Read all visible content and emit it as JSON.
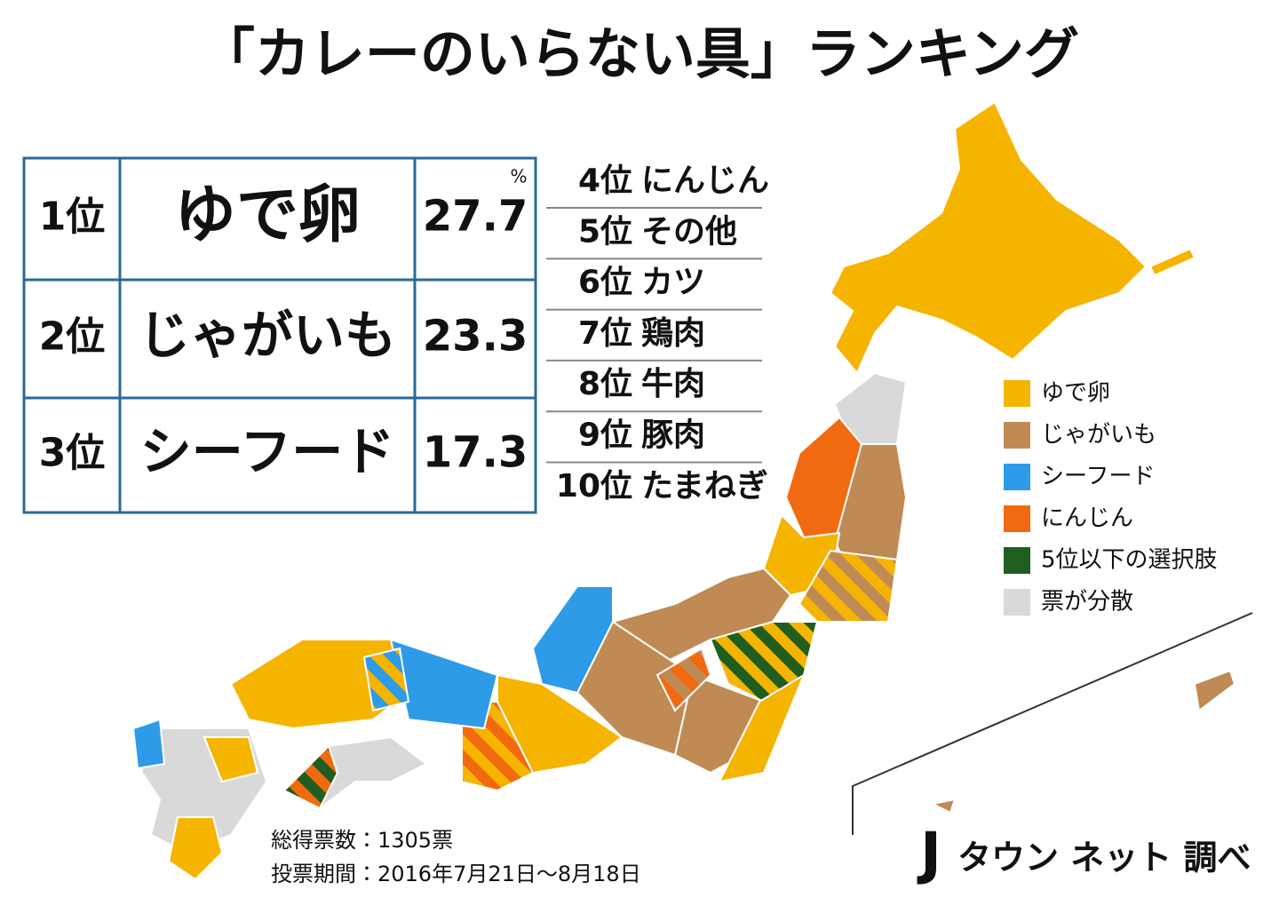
{
  "header": {
    "title": "「カレーのいらない具」ランキング"
  },
  "table": {
    "percent_unit": "%",
    "rows": [
      {
        "rank": "1位",
        "item": "ゆで卵",
        "percent": 27.7
      },
      {
        "rank": "2位",
        "item": "じゃがいも",
        "percent": 23.3
      },
      {
        "rank": "3位",
        "item": "シーフード",
        "percent": 17.3
      }
    ]
  },
  "ranking_list": [
    {
      "rank": "4位",
      "item": "にんじん"
    },
    {
      "rank": "5位",
      "item": "その他"
    },
    {
      "rank": "6位",
      "item": "カツ"
    },
    {
      "rank": "7位",
      "item": "鶏肉"
    },
    {
      "rank": "8位",
      "item": "牛肉"
    },
    {
      "rank": "9位",
      "item": "豚肉"
    },
    {
      "rank": "10位",
      "item": "たまねぎ"
    }
  ],
  "legend": {
    "items": [
      {
        "label": "ゆで卵",
        "color": "#f5b400"
      },
      {
        "label": "じゃがいも",
        "color": "#c08a55"
      },
      {
        "label": "シーフード",
        "color": "#2e9be8"
      },
      {
        "label": "にんじん",
        "color": "#f26a10"
      },
      {
        "label": "5位以下の選択肢",
        "color": "#1f5e1f"
      },
      {
        "label": "票が分散",
        "color": "#d9d9d9"
      }
    ]
  },
  "footer": {
    "total_votes": "総得票数：1305票",
    "period": "投票期間：2016年7月21日～8月18日"
  },
  "logo": {
    "mark": "J",
    "text": "タウン ネット 調べ"
  }
}
